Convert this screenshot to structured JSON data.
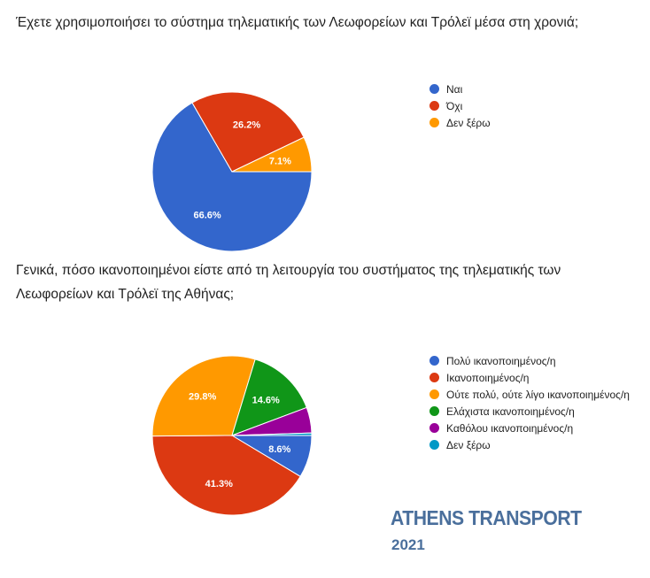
{
  "chart_data": [
    {
      "type": "pie",
      "title": "Έχετε χρησιμοποιήσει το σύστημα τηλεματικής των Λεωφορείων και Τρόλεϊ μέσα στη χρονιά;",
      "categories": [
        "Ναι",
        "Όχι",
        "Δεν ξέρω"
      ],
      "values": [
        66.6,
        26.2,
        7.1
      ],
      "labels": [
        "66.6%",
        "26.2%",
        "7.1%"
      ],
      "colors": [
        "#3366cc",
        "#dc3912",
        "#ff9900"
      ],
      "legend": "right"
    },
    {
      "type": "pie",
      "title": "Γενικά, πόσο ικανοποιημένοι είστε από τη λειτουργία του συστήματος της τηλεματικής των Λεωφορείων και Τρόλεϊ της Αθήνας;",
      "categories": [
        "Πολύ ικανοποιημένος/η",
        "Ικανοποιημένος/η",
        "Ούτε πολύ, ούτε λίγο ικανοποιημένος/η",
        "Ελάχιστα ικανοποιημένος/η",
        "Καθόλου ικανοποιημένος/η",
        "Δεν ξέρω"
      ],
      "values": [
        8.6,
        41.3,
        29.8,
        14.6,
        5.2,
        0.5
      ],
      "labels": [
        "8.6%",
        "41.3%",
        "29.8%",
        "14.6%",
        "",
        ""
      ],
      "colors": [
        "#3366cc",
        "#dc3912",
        "#ff9900",
        "#109618",
        "#990099",
        "#0099c6"
      ],
      "legend": "right"
    }
  ],
  "branding": {
    "name": "ATHENS TRANSPORT",
    "year": "2021"
  }
}
